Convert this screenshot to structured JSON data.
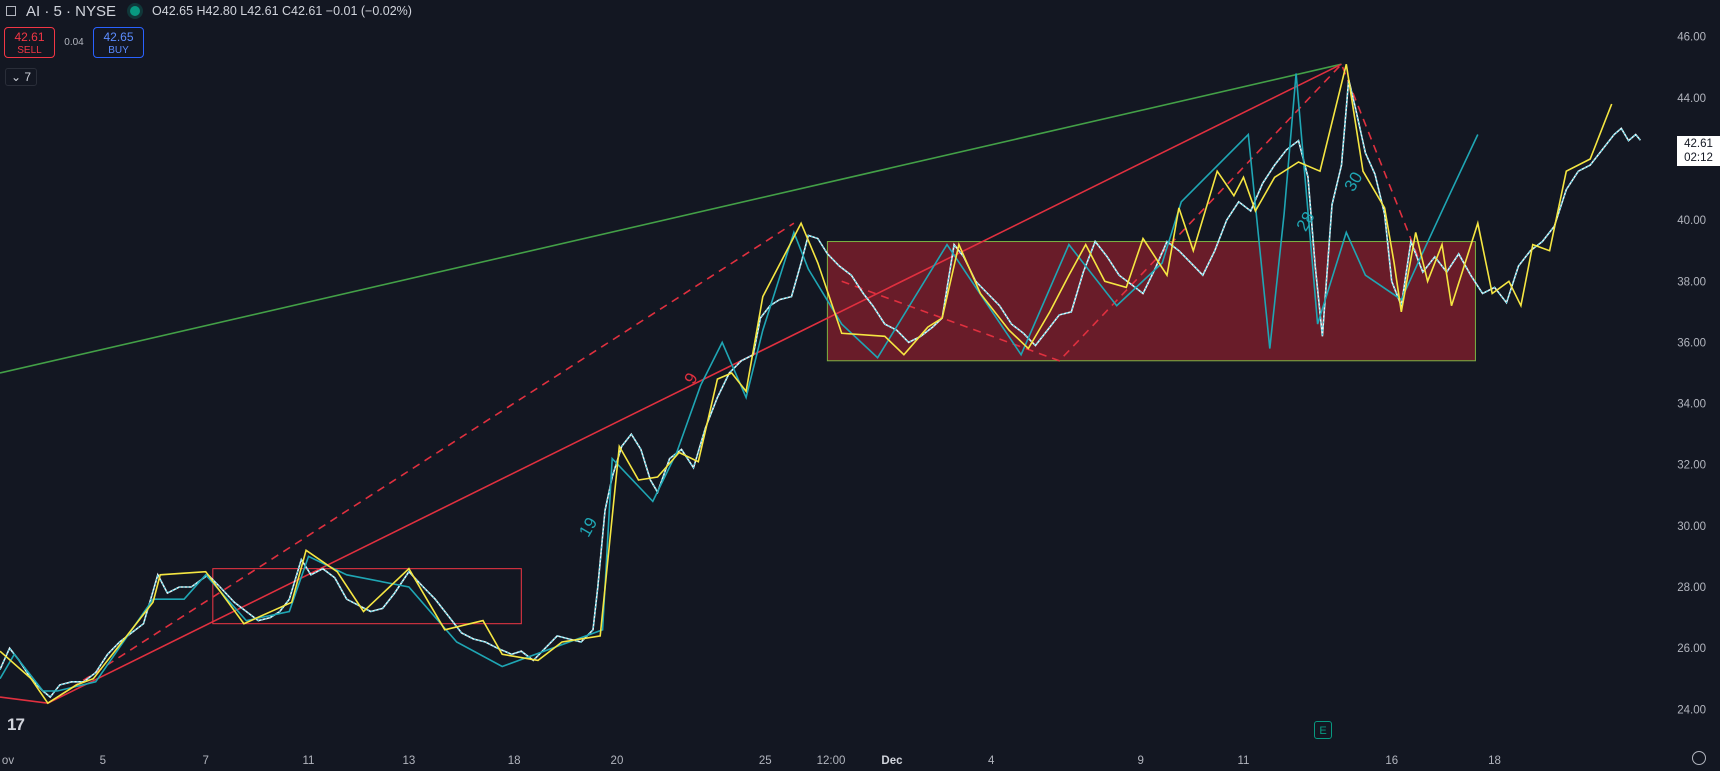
{
  "header": {
    "symbol": "AI · 5 · NYSE",
    "ohlc": "O42.65 H42.80 L42.61 C42.61 −0.01 (−0.02%)"
  },
  "trade": {
    "sell_price": "42.61",
    "sell_label": "SELL",
    "spread": "0.04",
    "buy_price": "42.65",
    "buy_label": "BUY"
  },
  "indicator_toggle": "7",
  "last_price": {
    "price": "42.61",
    "countdown": "02:12"
  },
  "earnings_marker": "E",
  "colors": {
    "background": "#131722",
    "up": "#089981",
    "down": "#f23645",
    "zigzag_yellow": "#f5e642",
    "zigzag_teal": "#1fa6b4",
    "trend_green": "#43a047",
    "trend_red": "#e0303f"
  },
  "chart_data": {
    "type": "line",
    "title": "",
    "xlabel": "",
    "ylabel": "",
    "ylim": [
      22.8,
      47.2
    ],
    "y_ticks": [
      24,
      26,
      28,
      30,
      32,
      34,
      36,
      38,
      40,
      42,
      44,
      46
    ],
    "x_ticks": [
      "ov",
      "5",
      "7",
      "11",
      "13",
      "18",
      "20",
      "25",
      "12:00",
      "Dec",
      "4",
      "9",
      "11",
      "16",
      "18"
    ],
    "x_tick_pos": [
      0,
      8.6,
      17.2,
      25.8,
      34.2,
      43.0,
      51.6,
      64.0,
      69.5,
      74.6,
      82.9,
      95.4,
      104.0,
      116.4,
      125.0
    ],
    "xlim": [
      0,
      138
    ],
    "price_series": [
      [
        0,
        25.3
      ],
      [
        0.8,
        26.0
      ],
      [
        1.6,
        25.6
      ],
      [
        2.6,
        25.0
      ],
      [
        3.6,
        24.6
      ],
      [
        4.2,
        24.4
      ],
      [
        5.0,
        24.8
      ],
      [
        6.0,
        24.9
      ],
      [
        7.0,
        24.9
      ],
      [
        8.0,
        25.2
      ],
      [
        9.0,
        25.8
      ],
      [
        10.0,
        26.2
      ],
      [
        11.0,
        26.5
      ],
      [
        12.0,
        26.8
      ],
      [
        12.6,
        27.6
      ],
      [
        13.2,
        28.4
      ],
      [
        14.0,
        27.8
      ],
      [
        15.0,
        28.0
      ],
      [
        16.0,
        28.0
      ],
      [
        17.4,
        28.4
      ],
      [
        18.4,
        28.0
      ],
      [
        19.6,
        27.5
      ],
      [
        20.6,
        27.2
      ],
      [
        21.6,
        26.9
      ],
      [
        22.6,
        27.0
      ],
      [
        23.4,
        27.2
      ],
      [
        24.2,
        27.6
      ],
      [
        25.2,
        28.9
      ],
      [
        26.0,
        28.4
      ],
      [
        27.0,
        28.6
      ],
      [
        28.0,
        28.3
      ],
      [
        29.0,
        27.6
      ],
      [
        30.0,
        27.4
      ],
      [
        31.0,
        27.2
      ],
      [
        32.0,
        27.3
      ],
      [
        33.0,
        27.8
      ],
      [
        34.2,
        28.5
      ],
      [
        35.4,
        28.0
      ],
      [
        36.4,
        27.6
      ],
      [
        37.4,
        27.1
      ],
      [
        38.6,
        26.5
      ],
      [
        39.6,
        26.3
      ],
      [
        40.6,
        26.2
      ],
      [
        41.6,
        26.0
      ],
      [
        42.8,
        25.8
      ],
      [
        43.6,
        25.9
      ],
      [
        44.6,
        25.6
      ],
      [
        45.6,
        26.0
      ],
      [
        46.6,
        26.4
      ],
      [
        47.6,
        26.3
      ],
      [
        48.6,
        26.2
      ],
      [
        49.6,
        26.6
      ],
      [
        50.0,
        28.0
      ],
      [
        50.6,
        30.5
      ],
      [
        51.2,
        31.6
      ],
      [
        52.0,
        32.6
      ],
      [
        52.8,
        33.0
      ],
      [
        53.6,
        32.5
      ],
      [
        54.4,
        31.5
      ],
      [
        55.0,
        31.1
      ],
      [
        56.0,
        32.2
      ],
      [
        57.0,
        32.5
      ],
      [
        58.0,
        31.9
      ],
      [
        59.0,
        33.2
      ],
      [
        60.0,
        34.2
      ],
      [
        61.0,
        35.0
      ],
      [
        62.0,
        35.4
      ],
      [
        63.0,
        35.6
      ],
      [
        63.6,
        36.8
      ],
      [
        64.4,
        37.2
      ],
      [
        65.2,
        37.4
      ],
      [
        66.2,
        37.5
      ],
      [
        67.0,
        38.6
      ],
      [
        67.6,
        39.5
      ],
      [
        68.4,
        39.4
      ],
      [
        69.2,
        38.9
      ],
      [
        70.2,
        38.5
      ],
      [
        71.2,
        38.2
      ],
      [
        72.2,
        37.6
      ],
      [
        73.0,
        37.2
      ],
      [
        74.0,
        36.6
      ],
      [
        75.0,
        36.4
      ],
      [
        76.0,
        36.0
      ],
      [
        77.0,
        36.2
      ],
      [
        78.0,
        36.5
      ],
      [
        78.8,
        36.8
      ],
      [
        79.8,
        39.2
      ],
      [
        80.6,
        38.8
      ],
      [
        81.6,
        38.0
      ],
      [
        82.6,
        37.6
      ],
      [
        83.6,
        37.2
      ],
      [
        84.6,
        36.6
      ],
      [
        85.6,
        36.3
      ],
      [
        86.6,
        35.9
      ],
      [
        87.6,
        36.4
      ],
      [
        88.6,
        36.9
      ],
      [
        89.6,
        37.0
      ],
      [
        90.6,
        38.3
      ],
      [
        91.6,
        39.3
      ],
      [
        92.6,
        38.8
      ],
      [
        93.6,
        38.2
      ],
      [
        94.6,
        37.9
      ],
      [
        95.6,
        37.6
      ],
      [
        96.6,
        38.4
      ],
      [
        97.6,
        39.3
      ],
      [
        98.6,
        39.0
      ],
      [
        99.6,
        38.6
      ],
      [
        100.6,
        38.2
      ],
      [
        101.6,
        39.0
      ],
      [
        102.6,
        40.0
      ],
      [
        103.6,
        40.6
      ],
      [
        104.6,
        40.3
      ],
      [
        105.6,
        41.2
      ],
      [
        106.6,
        41.8
      ],
      [
        107.6,
        42.3
      ],
      [
        108.6,
        42.6
      ],
      [
        109.4,
        41.4
      ],
      [
        110.0,
        38.5
      ],
      [
        110.6,
        36.2
      ],
      [
        111.4,
        40.5
      ],
      [
        112.2,
        41.8
      ],
      [
        112.8,
        44.6
      ],
      [
        113.4,
        43.6
      ],
      [
        114.2,
        42.2
      ],
      [
        115.0,
        41.5
      ],
      [
        115.8,
        40.2
      ],
      [
        116.4,
        38.0
      ],
      [
        117.2,
        37.2
      ],
      [
        118.0,
        39.3
      ],
      [
        119.0,
        38.3
      ],
      [
        120.0,
        38.8
      ],
      [
        121.0,
        38.3
      ],
      [
        122.0,
        38.9
      ],
      [
        123.0,
        38.2
      ],
      [
        124.0,
        37.6
      ],
      [
        125.0,
        37.8
      ],
      [
        126.0,
        37.3
      ],
      [
        127.0,
        38.5
      ],
      [
        128.0,
        39.0
      ],
      [
        129.0,
        39.3
      ],
      [
        130.0,
        39.8
      ],
      [
        131.0,
        41.0
      ],
      [
        132.0,
        41.6
      ],
      [
        133.0,
        41.8
      ],
      [
        134.0,
        42.3
      ],
      [
        135.0,
        42.8
      ],
      [
        135.6,
        43.0
      ],
      [
        136.2,
        42.6
      ],
      [
        136.8,
        42.8
      ],
      [
        137.2,
        42.61
      ]
    ],
    "zigzag_yellow": [
      [
        0,
        25.9
      ],
      [
        2.6,
        25.0
      ],
      [
        4.0,
        24.2
      ],
      [
        6.4,
        24.8
      ],
      [
        7.8,
        25.0
      ],
      [
        12.8,
        27.5
      ],
      [
        13.4,
        28.4
      ],
      [
        17.2,
        28.5
      ],
      [
        20.4,
        26.8
      ],
      [
        24.4,
        27.5
      ],
      [
        25.6,
        29.2
      ],
      [
        28.2,
        28.5
      ],
      [
        30.4,
        27.2
      ],
      [
        34.2,
        28.6
      ],
      [
        37.2,
        26.6
      ],
      [
        40.4,
        26.9
      ],
      [
        42.0,
        25.8
      ],
      [
        45.0,
        25.6
      ],
      [
        47.0,
        26.2
      ],
      [
        50.2,
        26.4
      ],
      [
        51.8,
        32.6
      ],
      [
        53.4,
        31.5
      ],
      [
        55.0,
        31.6
      ],
      [
        56.8,
        32.4
      ],
      [
        58.4,
        32.1
      ],
      [
        60.0,
        34.8
      ],
      [
        61.2,
        35.0
      ],
      [
        62.4,
        34.4
      ],
      [
        63.8,
        37.5
      ],
      [
        67.0,
        39.9
      ],
      [
        68.4,
        38.6
      ],
      [
        70.4,
        36.3
      ],
      [
        74.0,
        36.2
      ],
      [
        75.6,
        35.6
      ],
      [
        77.6,
        36.5
      ],
      [
        78.8,
        36.8
      ],
      [
        80.2,
        39.2
      ],
      [
        82.0,
        37.6
      ],
      [
        84.4,
        36.4
      ],
      [
        86.0,
        35.8
      ],
      [
        87.8,
        37.0
      ],
      [
        89.4,
        38.2
      ],
      [
        90.8,
        39.2
      ],
      [
        92.4,
        38.0
      ],
      [
        94.2,
        37.8
      ],
      [
        95.6,
        39.4
      ],
      [
        97.6,
        38.2
      ],
      [
        98.6,
        40.4
      ],
      [
        99.8,
        39.0
      ],
      [
        101.8,
        41.6
      ],
      [
        103.2,
        40.8
      ],
      [
        104.0,
        41.4
      ],
      [
        105.0,
        40.3
      ],
      [
        106.6,
        41.4
      ],
      [
        108.6,
        41.9
      ],
      [
        110.4,
        41.6
      ],
      [
        112.6,
        45.1
      ],
      [
        114.0,
        41.6
      ],
      [
        115.8,
        40.4
      ],
      [
        116.6,
        38.6
      ],
      [
        117.2,
        37.0
      ],
      [
        118.4,
        39.6
      ],
      [
        119.4,
        38.0
      ],
      [
        120.6,
        39.2
      ],
      [
        121.4,
        37.2
      ],
      [
        123.6,
        39.9
      ],
      [
        124.8,
        37.6
      ],
      [
        126.2,
        38.0
      ],
      [
        127.2,
        37.2
      ],
      [
        128.2,
        39.2
      ],
      [
        129.6,
        39.0
      ],
      [
        131.0,
        41.6
      ],
      [
        133.0,
        42.0
      ],
      [
        134.8,
        43.8
      ]
    ],
    "zigzag_teal": [
      [
        0,
        25.0
      ],
      [
        1.2,
        25.8
      ],
      [
        3.6,
        24.6
      ],
      [
        4.8,
        24.6
      ],
      [
        8.0,
        24.9
      ],
      [
        12.8,
        27.6
      ],
      [
        15.4,
        27.6
      ],
      [
        17.2,
        28.4
      ],
      [
        20.6,
        26.9
      ],
      [
        24.2,
        27.2
      ],
      [
        25.8,
        29.0
      ],
      [
        29.0,
        28.4
      ],
      [
        34.2,
        28.0
      ],
      [
        38.2,
        26.2
      ],
      [
        42.0,
        25.4
      ],
      [
        50.4,
        26.6
      ],
      [
        51.2,
        32.2
      ],
      [
        54.6,
        30.8
      ],
      [
        56.6,
        32.4
      ],
      [
        58.6,
        34.6
      ],
      [
        60.4,
        36.0
      ],
      [
        62.4,
        34.2
      ],
      [
        63.8,
        36.4
      ],
      [
        66.4,
        39.6
      ],
      [
        67.6,
        38.4
      ],
      [
        70.4,
        36.6
      ],
      [
        73.4,
        35.5
      ],
      [
        79.2,
        39.2
      ],
      [
        85.4,
        35.6
      ],
      [
        89.4,
        39.2
      ],
      [
        93.4,
        37.2
      ],
      [
        97.2,
        38.6
      ],
      [
        98.8,
        40.6
      ],
      [
        104.4,
        42.8
      ],
      [
        106.2,
        35.8
      ],
      [
        107.4,
        40.2
      ],
      [
        108.4,
        44.8
      ],
      [
        110.2,
        36.6
      ],
      [
        112.6,
        39.6
      ],
      [
        114.2,
        38.2
      ],
      [
        117.2,
        37.4
      ],
      [
        118.6,
        38.6
      ],
      [
        121.2,
        40.8
      ],
      [
        123.6,
        42.8
      ]
    ],
    "trendlines": [
      {
        "name": "",
        "color": "#43a047",
        "style": "solid",
        "points": [
          [
            0,
            35.0
          ],
          [
            112.2,
            45.1
          ]
        ]
      },
      {
        "name": "",
        "color": "#e0303f",
        "style": "solid",
        "points": [
          [
            0,
            24.4
          ],
          [
            4.0,
            24.2
          ],
          [
            112.2,
            45.1
          ]
        ]
      },
      {
        "name": "",
        "color": "#e0303f",
        "style": "dashed",
        "points": [
          [
            4.0,
            24.2
          ],
          [
            66.4,
            39.9
          ]
        ]
      },
      {
        "name": "",
        "color": "#e0303f",
        "style": "dashed",
        "points": [
          [
            70.4,
            38.0
          ],
          [
            88.6,
            35.4
          ],
          [
            112.2,
            45.1
          ],
          [
            118.6,
            38.8
          ]
        ]
      }
    ],
    "rectangles": [
      {
        "color": "#f23645",
        "filled": false,
        "x": [
          17.8,
          43.6
        ],
        "y": [
          26.8,
          28.6
        ]
      },
      {
        "color": "#8b1e2d",
        "filled": true,
        "x": [
          69.2,
          123.4
        ],
        "y": [
          35.4,
          39.3
        ]
      }
    ],
    "wave_labels": [
      {
        "text": "9",
        "x": 58.0,
        "y": 34.6,
        "color": "#e0303f"
      },
      {
        "text": "19",
        "x": 49.2,
        "y": 29.6,
        "color": "#1fa6b4"
      },
      {
        "text": "28",
        "x": 109.2,
        "y": 39.6,
        "color": "#1fa6b4"
      },
      {
        "text": "30",
        "x": 113.2,
        "y": 40.9,
        "color": "#1fa6b4"
      }
    ]
  }
}
